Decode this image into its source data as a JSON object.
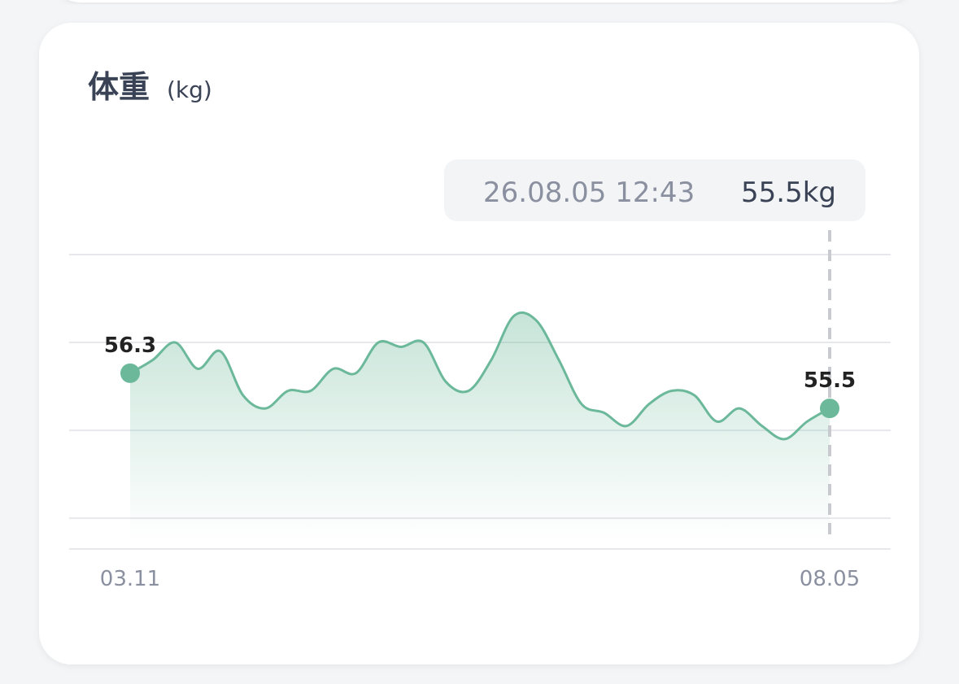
{
  "chart_data": {
    "type": "line",
    "title": "体重",
    "unit": "(kg)",
    "tooltip": {
      "time": "26.08.05 12:43",
      "value_label": "55.5kg"
    },
    "categories": [
      "03.11",
      null,
      null,
      null,
      null,
      null,
      null,
      null,
      null,
      null,
      null,
      null,
      null,
      null,
      null,
      null,
      null,
      null,
      null,
      null,
      null,
      null,
      null,
      null,
      null,
      null,
      null,
      null,
      null,
      null,
      null,
      "08.05"
    ],
    "series": [
      {
        "color": "#6bb89a",
        "values": [
          56.3,
          56.6,
          57.0,
          56.4,
          56.8,
          55.8,
          55.5,
          55.9,
          55.9,
          56.4,
          56.3,
          57.0,
          56.9,
          57.0,
          56.1,
          55.9,
          56.6,
          57.6,
          57.5,
          56.6,
          55.6,
          55.4,
          55.1,
          55.6,
          55.9,
          55.8,
          55.2,
          55.5,
          55.1,
          54.8,
          55.2,
          55.5
        ],
        "labeled_points": [
          0,
          31
        ]
      }
    ],
    "ylim": [
      52.3,
      59
    ],
    "yticks": [
      53,
      55,
      57,
      59
    ],
    "grid": true
  }
}
